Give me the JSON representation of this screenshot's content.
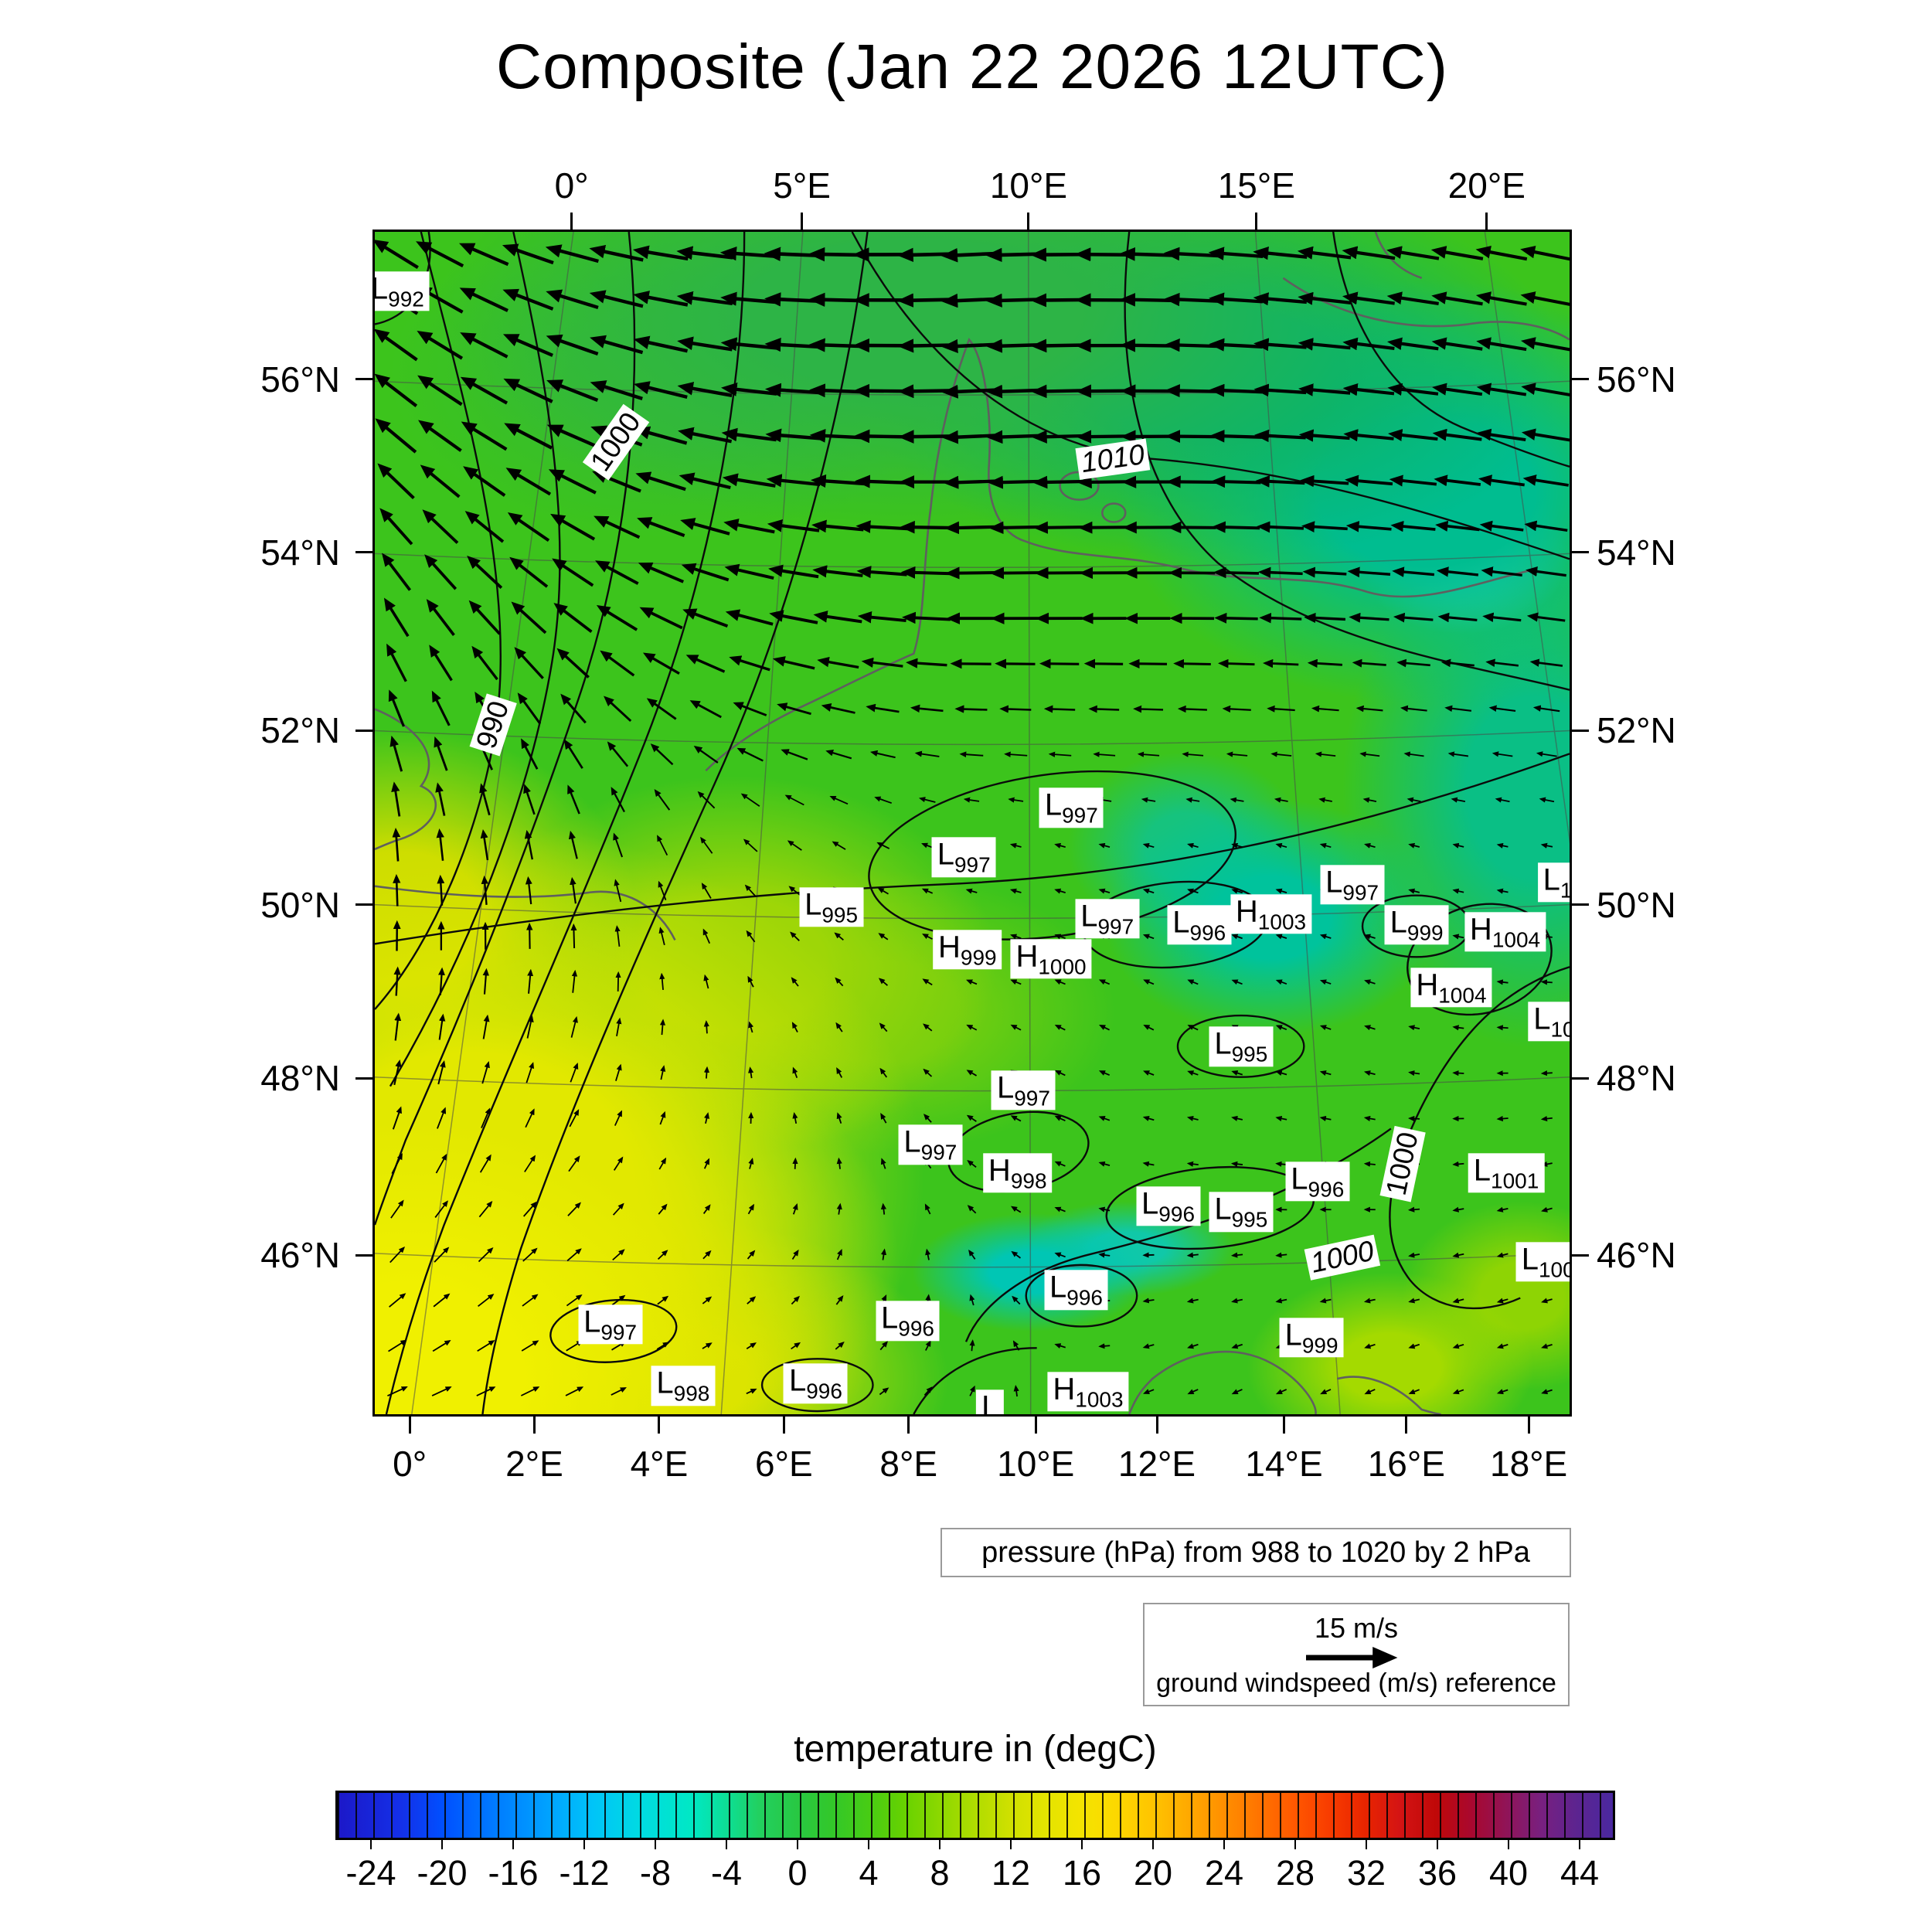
{
  "chart_data": {
    "type": "heatmap",
    "title": "Composite (Jan 22 2026 12UTC)",
    "axes": {
      "top": [
        {
          "l": "0°",
          "f": 0.166
        },
        {
          "l": "5°E",
          "f": 0.358
        },
        {
          "l": "10°E",
          "f": 0.547
        },
        {
          "l": "15°E",
          "f": 0.737
        },
        {
          "l": "20°E",
          "f": 0.929
        }
      ],
      "bottom": [
        {
          "l": "0°",
          "f": 0.031
        },
        {
          "l": "2°E",
          "f": 0.135
        },
        {
          "l": "4°E",
          "f": 0.239
        },
        {
          "l": "6°E",
          "f": 0.343
        },
        {
          "l": "8°E",
          "f": 0.447
        },
        {
          "l": "10°E",
          "f": 0.553
        },
        {
          "l": "12°E",
          "f": 0.654
        },
        {
          "l": "14°E",
          "f": 0.76
        },
        {
          "l": "16°E",
          "f": 0.862
        },
        {
          "l": "18°E",
          "f": 0.964
        }
      ],
      "lat": [
        {
          "l": "56°N",
          "f": 0.126
        },
        {
          "l": "54°N",
          "f": 0.272
        },
        {
          "l": "52°N",
          "f": 0.422
        },
        {
          "l": "50°N",
          "f": 0.569
        },
        {
          "l": "48°N",
          "f": 0.715
        },
        {
          "l": "46°N",
          "f": 0.864
        }
      ]
    },
    "pressure": {
      "caption": "pressure (hPa) from 988 to 1020 by 2 hPa",
      "min": 988,
      "max": 1020,
      "step": 2,
      "inline_labels": [
        {
          "text": "1000",
          "x": 20.2,
          "y": 17.8,
          "rot": -55,
          "italic": false
        },
        {
          "text": "1010",
          "x": 61.8,
          "y": 19.2,
          "rot": -8,
          "italic": true
        },
        {
          "text": "990",
          "x": 9.9,
          "y": 41.7,
          "rot": -72,
          "italic": false
        },
        {
          "text": "1000",
          "x": 86.0,
          "y": 78.8,
          "rot": -78,
          "italic": false
        },
        {
          "text": "1000",
          "x": 81.0,
          "y": 86.7,
          "rot": -12,
          "italic": true
        }
      ],
      "centers": [
        {
          "t": "L",
          "v": "992",
          "x": 1.9,
          "y": 5.0
        },
        {
          "t": "L",
          "v": "997",
          "x": 58.3,
          "y": 48.7
        },
        {
          "t": "L",
          "v": "997",
          "x": 49.3,
          "y": 52.9
        },
        {
          "t": "L",
          "v": "995",
          "x": 38.2,
          "y": 57.1
        },
        {
          "t": "L",
          "v": "997",
          "x": 61.3,
          "y": 58.1
        },
        {
          "t": "L",
          "v": "996",
          "x": 69.0,
          "y": 58.6
        },
        {
          "t": "H",
          "v": "1003",
          "x": 75.0,
          "y": 57.7
        },
        {
          "t": "L",
          "v": "997",
          "x": 81.8,
          "y": 55.2
        },
        {
          "t": "L",
          "v": "999",
          "x": 87.2,
          "y": 58.6
        },
        {
          "t": "H",
          "v": "1004",
          "x": 94.6,
          "y": 59.2
        },
        {
          "t": "L",
          "v": "1",
          "x": 99.0,
          "y": 55.0
        },
        {
          "t": "H",
          "v": "999",
          "x": 49.6,
          "y": 60.7
        },
        {
          "t": "H",
          "v": "1000",
          "x": 56.6,
          "y": 61.5
        },
        {
          "t": "H",
          "v": "1004",
          "x": 90.1,
          "y": 63.9
        },
        {
          "t": "L",
          "v": "10",
          "x": 98.7,
          "y": 66.8
        },
        {
          "t": "L",
          "v": "995",
          "x": 72.5,
          "y": 68.9
        },
        {
          "t": "L",
          "v": "997",
          "x": 54.3,
          "y": 72.6
        },
        {
          "t": "L",
          "v": "997",
          "x": 46.5,
          "y": 77.2
        },
        {
          "t": "H",
          "v": "998",
          "x": 53.8,
          "y": 79.6
        },
        {
          "t": "L",
          "v": "996",
          "x": 78.9,
          "y": 80.3
        },
        {
          "t": "L",
          "v": "1001",
          "x": 94.7,
          "y": 79.6
        },
        {
          "t": "L",
          "v": "996",
          "x": 66.4,
          "y": 82.4
        },
        {
          "t": "L",
          "v": "995",
          "x": 72.5,
          "y": 82.9
        },
        {
          "t": "L",
          "v": "100",
          "x": 98.2,
          "y": 87.1
        },
        {
          "t": "L",
          "v": "996",
          "x": 58.7,
          "y": 89.5
        },
        {
          "t": "L",
          "v": "997",
          "x": 19.7,
          "y": 92.4
        },
        {
          "t": "L",
          "v": "996",
          "x": 44.6,
          "y": 92.1
        },
        {
          "t": "L",
          "v": "999",
          "x": 78.4,
          "y": 93.5
        },
        {
          "t": "L",
          "v": "998",
          "x": 25.8,
          "y": 97.6
        },
        {
          "t": "L",
          "v": "996",
          "x": 36.9,
          "y": 97.4
        },
        {
          "t": "H",
          "v": "1003",
          "x": 59.7,
          "y": 98.1
        },
        {
          "t": "L",
          "v": "",
          "x": 51.5,
          "y": 99.6
        }
      ]
    },
    "wind": {
      "reference_speed": "15 m/s",
      "reference_caption": "ground windspeed (m/s) reference",
      "arrow_color": "#000000",
      "grid_cols": 27,
      "grid_rows": 26,
      "control_grid": [
        [
          [
            -54,
            -35
          ],
          [
            -64,
            -16
          ],
          [
            -70,
            -3
          ],
          [
            -70,
            3
          ],
          [
            -67,
            -3
          ],
          [
            -64,
            -10
          ],
          [
            -61,
            -13
          ]
        ],
        [
          [
            -48,
            -42
          ],
          [
            -61,
            -26
          ],
          [
            -67,
            -6
          ],
          [
            -67,
            3
          ],
          [
            -64,
            0
          ],
          [
            -61,
            -6
          ],
          [
            -58,
            -10
          ]
        ],
        [
          [
            -26,
            -48
          ],
          [
            -45,
            -35
          ],
          [
            -58,
            -13
          ],
          [
            -58,
            0
          ],
          [
            -54,
            0
          ],
          [
            -48,
            -3
          ],
          [
            -45,
            -6
          ]
        ],
        [
          [
            -3,
            -42
          ],
          [
            -10,
            -35
          ],
          [
            -19,
            -13
          ],
          [
            -13,
            -3
          ],
          [
            -11,
            -3
          ],
          [
            -11,
            -3
          ],
          [
            -14,
            -3
          ]
        ],
        [
          [
            3,
            -35
          ],
          [
            6,
            -26
          ],
          [
            -5,
            -10
          ],
          [
            -6,
            -3
          ],
          [
            -6,
            -3
          ],
          [
            -6,
            -2
          ],
          [
            -10,
            0
          ]
        ],
        [
          [
            16,
            -22
          ],
          [
            16,
            -16
          ],
          [
            3,
            -6
          ],
          [
            -3,
            -3
          ],
          [
            -6,
            0
          ],
          [
            -6,
            0
          ],
          [
            -10,
            3
          ]
        ],
        [
          [
            26,
            -10
          ],
          [
            22,
            -10
          ],
          [
            8,
            -3
          ],
          [
            2,
            -3
          ],
          [
            -6,
            3
          ],
          [
            -6,
            3
          ],
          [
            -10,
            3
          ]
        ]
      ]
    },
    "temperature": {
      "colorbar_title": "temperature in (degC)",
      "unit": "degC",
      "range": [
        -26,
        46
      ],
      "tick_values": [
        -24,
        -20,
        -16,
        -12,
        -8,
        -4,
        0,
        4,
        8,
        12,
        16,
        20,
        24,
        28,
        32,
        36,
        40,
        44
      ],
      "base_color": "#3cc41c",
      "field_blobs": [
        [
          3,
          97,
          26,
          22,
          "#f0f000"
        ],
        [
          8,
          80,
          38,
          30,
          "#e2e800"
        ],
        [
          2,
          58,
          20,
          16,
          "#cbdc00"
        ],
        [
          14,
          88,
          30,
          22,
          "#dce400"
        ],
        [
          22,
          97,
          26,
          14,
          "#d8e200"
        ],
        [
          30,
          62,
          22,
          16,
          "#9ed607"
        ],
        [
          42,
          66,
          20,
          12,
          "#72ce10"
        ],
        [
          45,
          7,
          40,
          18,
          "#2db446"
        ],
        [
          25,
          12,
          24,
          14,
          "#36bc30"
        ],
        [
          70,
          12,
          30,
          16,
          "#0cb46a"
        ],
        [
          88,
          22,
          26,
          18,
          "#00bd90"
        ],
        [
          91,
          27,
          9,
          7,
          "#3fe0c0"
        ],
        [
          97,
          47,
          16,
          22,
          "#0abf85"
        ],
        [
          75,
          58,
          14,
          10,
          "#00c39c"
        ],
        [
          68,
          52,
          10,
          8,
          "#16c37e"
        ],
        [
          55,
          88,
          10,
          5,
          "#00c6b4"
        ],
        [
          63,
          86,
          9,
          4,
          "#10c8a8"
        ],
        [
          85,
          96,
          12,
          8,
          "#a4da00"
        ],
        [
          96,
          90,
          10,
          8,
          "#8ed404"
        ]
      ],
      "stops": [
        [
          0,
          "#1c18c8"
        ],
        [
          5,
          "#1430e8"
        ],
        [
          8.3,
          "#0050ff"
        ],
        [
          12,
          "#0078ff"
        ],
        [
          16.7,
          "#00a4ff"
        ],
        [
          20,
          "#00c4f8"
        ],
        [
          24,
          "#00dce0"
        ],
        [
          27.8,
          "#00e8c4"
        ],
        [
          31,
          "#10dc8c"
        ],
        [
          33,
          "#22d060"
        ],
        [
          36.1,
          "#28c842"
        ],
        [
          39,
          "#34c828"
        ],
        [
          41.7,
          "#48cc14"
        ],
        [
          44.5,
          "#68d200"
        ],
        [
          47.2,
          "#8cd800"
        ],
        [
          50,
          "#b0dc00"
        ],
        [
          52.8,
          "#d0e000"
        ],
        [
          55.5,
          "#e4e400"
        ],
        [
          58.3,
          "#f4e400"
        ],
        [
          61,
          "#fcd800"
        ],
        [
          63.9,
          "#ffc400"
        ],
        [
          66.6,
          "#ffaa00"
        ],
        [
          69.4,
          "#ff9000"
        ],
        [
          72.2,
          "#ff7400"
        ],
        [
          75,
          "#ff5800"
        ],
        [
          77.8,
          "#f83c00"
        ],
        [
          80.6,
          "#e82400"
        ],
        [
          83.3,
          "#d41414"
        ],
        [
          86.1,
          "#c00808"
        ],
        [
          89,
          "#a80830"
        ],
        [
          91.7,
          "#901458"
        ],
        [
          94.4,
          "#782080"
        ],
        [
          97.2,
          "#5c2490"
        ],
        [
          100,
          "#4a28a0"
        ]
      ]
    }
  }
}
